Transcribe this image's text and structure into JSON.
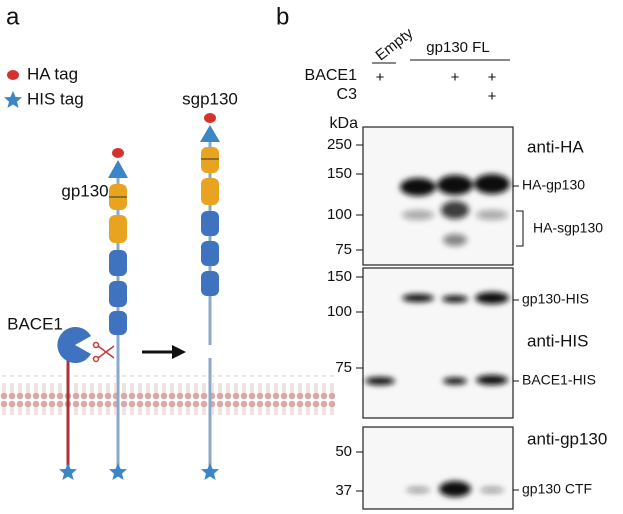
{
  "panel_a": {
    "label": "a",
    "legend": [
      "HA tag",
      "HIS tag"
    ],
    "constructs": [
      "gp130",
      "sgp130"
    ],
    "enzyme": "BACE1"
  },
  "panel_b": {
    "label": "b",
    "groups": [
      "Empty",
      "gp130 FL"
    ],
    "conditions": [
      {
        "name": "BACE1",
        "marks": [
          "+",
          null,
          "+",
          "+"
        ]
      },
      {
        "name": "C3",
        "marks": [
          null,
          null,
          null,
          "+"
        ]
      }
    ],
    "kda_label": "kDa",
    "blots": [
      {
        "antibody": "anti-HA",
        "ladder": [
          250,
          150,
          100,
          75
        ],
        "bands": [
          "HA-gp130",
          "HA-sgp130"
        ]
      },
      {
        "antibody": "anti-HIS",
        "ladder": [
          150,
          100,
          75
        ],
        "bands": [
          "gp130-HIS",
          "BACE1-HIS"
        ]
      },
      {
        "antibody": "anti-gp130",
        "ladder": [
          50,
          37
        ],
        "bands": [
          "gp130 CTF"
        ]
      }
    ]
  }
}
